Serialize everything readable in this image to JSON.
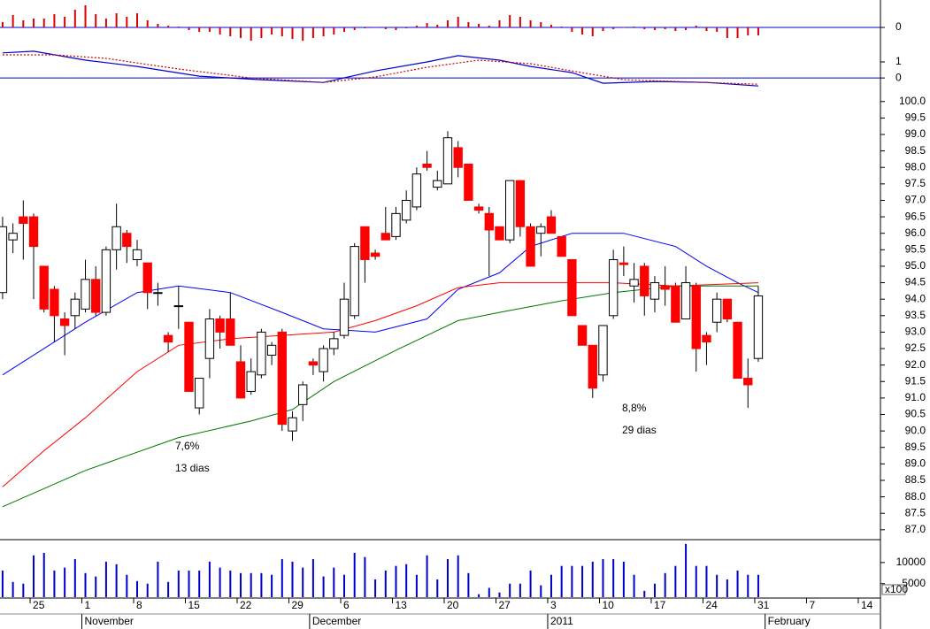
{
  "chart_data": [
    {
      "type": "bar",
      "color": "#dd0000",
      "xlim": [
        -3.25,
        81.8
      ],
      "ylim": [
        -18,
        29
      ],
      "yticks": [
        0
      ],
      "zero_line_color": "#0000cc",
      "x": [
        -3,
        -2,
        -1,
        0,
        1,
        2,
        3,
        4,
        5,
        6,
        7,
        8,
        9,
        10,
        11,
        12,
        13,
        14,
        15,
        16,
        17,
        18,
        19,
        20,
        21,
        22,
        23,
        24,
        25,
        26,
        27,
        28,
        29,
        30,
        31,
        32,
        33,
        34,
        35,
        36,
        37,
        38,
        39,
        40,
        41,
        42,
        43,
        44,
        45,
        46,
        47,
        48,
        49,
        50,
        51,
        52,
        53,
        54,
        55,
        56,
        57,
        58,
        59,
        60,
        61,
        62,
        63,
        64,
        65,
        66,
        67,
        68,
        69,
        70
      ],
      "values": [
        6,
        14,
        8,
        10,
        10,
        15,
        12,
        20,
        25,
        15,
        10,
        16,
        12,
        16,
        8,
        4,
        2,
        1,
        -3,
        -5,
        -5,
        -8,
        -10,
        -12,
        -15,
        -12,
        -8,
        -10,
        -13,
        -15,
        -12,
        -10,
        -8,
        -5,
        -3,
        -1,
        0,
        -2,
        -3,
        -1,
        2,
        5,
        3,
        8,
        12,
        6,
        4,
        2,
        8,
        14,
        12,
        8,
        6,
        3,
        1,
        -5,
        -8,
        -10,
        -4,
        -2,
        0,
        1,
        -2,
        -3,
        -2,
        -4,
        -3,
        2,
        -4,
        -5,
        -12,
        -12,
        -9,
        -9
      ]
    },
    {
      "type": "line",
      "xlim": [
        -3.25,
        81.8
      ],
      "ylim": [
        -0.6,
        2.6
      ],
      "yticks": [
        0,
        1
      ],
      "zero_line_color": "#0000cc",
      "series": [
        {
          "color": "#0000cc",
          "style": "solid",
          "x": [
            -3,
            0,
            5,
            10,
            16,
            22,
            28,
            33,
            38,
            41,
            45,
            48,
            52,
            55,
            60,
            65,
            70
          ],
          "values": [
            1.56,
            1.67,
            1.11,
            0.72,
            0.11,
            -0.11,
            -0.28,
            0.44,
            1.0,
            1.39,
            1.11,
            0.72,
            0.33,
            -0.33,
            -0.22,
            -0.28,
            -0.5
          ]
        },
        {
          "color": "#cc0000",
          "style": "dotted",
          "x": [
            -3,
            2,
            7,
            14,
            21,
            28,
            33,
            38,
            43,
            48,
            52,
            57,
            62,
            70
          ],
          "values": [
            1.44,
            1.44,
            1.22,
            0.56,
            0,
            -0.28,
            0.06,
            0.67,
            1.11,
            0.89,
            0.44,
            -0.11,
            -0.22,
            -0.39
          ]
        }
      ]
    },
    {
      "type": "candlestick",
      "xlim": [
        -3.25,
        81.8
      ],
      "ylim": [
        86.7,
        100.45
      ],
      "up_color": "#ffffff",
      "down_color": "#ff0000",
      "yticks": [
        {
          "value": 87,
          "label": "87.0"
        },
        {
          "value": 87.5,
          "label": "87.5"
        },
        {
          "value": 88,
          "label": "88.0"
        },
        {
          "value": 88.5,
          "label": "88.5"
        },
        {
          "value": 89,
          "label": "89.0"
        },
        {
          "value": 89.5,
          "label": "89.5"
        },
        {
          "value": 90,
          "label": "90.0"
        },
        {
          "value": 90.5,
          "label": "90.5"
        },
        {
          "value": 91,
          "label": "91.0"
        },
        {
          "value": 91.5,
          "label": "91.5"
        },
        {
          "value": 92,
          "label": "92.0"
        },
        {
          "value": 92.5,
          "label": "92.5"
        },
        {
          "value": 93,
          "label": "93.0"
        },
        {
          "value": 93.5,
          "label": "93.5"
        },
        {
          "value": 94,
          "label": "94.0"
        },
        {
          "value": 94.5,
          "label": "94.5"
        },
        {
          "value": 95,
          "label": "95.0"
        },
        {
          "value": 95.5,
          "label": "95.5"
        },
        {
          "value": 96,
          "label": "96.0"
        },
        {
          "value": 96.5,
          "label": "96.5"
        },
        {
          "value": 97,
          "label": "97.0"
        },
        {
          "value": 97.5,
          "label": "97.5"
        },
        {
          "value": 98,
          "label": "98.0"
        },
        {
          "value": 98.5,
          "label": "98.5"
        },
        {
          "value": 99,
          "label": "99.0"
        },
        {
          "value": 99.5,
          "label": "99.5"
        },
        {
          "value": 100,
          "label": "100.0"
        }
      ],
      "x": [
        -3,
        -2,
        -1,
        0,
        1,
        2,
        3,
        4,
        5,
        6,
        7,
        8,
        9,
        10,
        11,
        12,
        13,
        14,
        15,
        16,
        17,
        18,
        19,
        20,
        21,
        22,
        23,
        24,
        25,
        26,
        27,
        28,
        29,
        30,
        31,
        32,
        33,
        34,
        35,
        36,
        37,
        38,
        39,
        40,
        41,
        42,
        43,
        44,
        45,
        46,
        47,
        48,
        49,
        50,
        51,
        52,
        53,
        54,
        55,
        56,
        57,
        58,
        59,
        60,
        61,
        62,
        63,
        64,
        65,
        66,
        67,
        68,
        69,
        70
      ],
      "open": [
        94.2,
        95.8,
        96.5,
        96.5,
        95.0,
        94.3,
        93.4,
        93.5,
        93.7,
        94.6,
        93.6,
        95.5,
        96.0,
        95.2,
        95.1,
        94.2,
        92.9,
        93.8,
        93.3,
        90.7,
        92.2,
        93.4,
        93.4,
        92.1,
        91.2,
        91.7,
        92.3,
        93.0,
        90.0,
        90.8,
        92.1,
        91.8,
        92.5,
        92.9,
        93.5,
        96.2,
        95.4,
        96.0,
        95.9,
        96.4,
        96.8,
        98.1,
        97.4,
        97.5,
        98.6,
        98.1,
        96.8,
        96.6,
        96.2,
        95.8,
        97.6,
        96.2,
        96.0,
        96.5,
        95.9,
        95.2,
        93.2,
        92.6,
        91.7,
        93.5,
        95.1,
        94.4,
        95.0,
        94.0,
        94.4,
        94.4,
        93.4,
        94.4,
        92.9,
        93.3,
        94.0,
        93.3,
        91.6,
        92.2
      ],
      "high": [
        96.5,
        96.3,
        97.0,
        96.6,
        95.0,
        94.4,
        93.6,
        94.2,
        95.2,
        95.0,
        95.6,
        96.9,
        96.1,
        95.8,
        95.1,
        94.5,
        93.0,
        94.4,
        93.3,
        91.6,
        93.7,
        93.5,
        94.2,
        92.6,
        92.2,
        93.1,
        92.7,
        93.1,
        90.6,
        91.5,
        92.2,
        92.6,
        93.0,
        94.5,
        95.7,
        96.2,
        95.5,
        96.8,
        96.8,
        97.3,
        98.0,
        98.5,
        97.9,
        99.1,
        98.8,
        98.1,
        96.9,
        96.8,
        96.2,
        97.6,
        97.6,
        96.3,
        96.3,
        96.7,
        95.9,
        95.2,
        93.2,
        92.6,
        93.2,
        95.5,
        95.6,
        95.1,
        95.1,
        94.7,
        95.0,
        94.5,
        95.0,
        94.5,
        93.0,
        94.2,
        94.0,
        93.3,
        92.2,
        94.4
      ],
      "low": [
        94.0,
        95.4,
        95.2,
        94.0,
        93.6,
        92.7,
        92.3,
        93.1,
        93.6,
        93.5,
        93.5,
        94.9,
        95.1,
        95.0,
        93.7,
        93.8,
        92.4,
        93.1,
        91.2,
        90.5,
        91.6,
        92.5,
        92.6,
        91.0,
        91.1,
        91.6,
        92.0,
        90.0,
        89.7,
        90.3,
        91.7,
        91.5,
        92.3,
        92.8,
        93.4,
        94.5,
        95.2,
        95.8,
        95.8,
        96.3,
        96.7,
        97.9,
        97.3,
        97.5,
        97.7,
        97.0,
        96.6,
        94.7,
        95.8,
        95.7,
        95.9,
        95.0,
        95.3,
        96.0,
        95.3,
        93.5,
        92.6,
        91.0,
        91.5,
        93.4,
        94.7,
        93.9,
        93.5,
        93.6,
        93.8,
        93.3,
        93.4,
        91.8,
        92.0,
        93.0,
        93.3,
        91.6,
        90.7,
        92.1
      ],
      "close": [
        96.2,
        96.0,
        96.3,
        95.6,
        93.7,
        93.5,
        93.2,
        94.0,
        94.6,
        93.6,
        95.5,
        96.2,
        95.6,
        95.5,
        94.2,
        94.2,
        92.7,
        93.8,
        91.2,
        91.6,
        93.4,
        93.0,
        92.6,
        91.0,
        91.8,
        93.0,
        92.6,
        90.2,
        90.4,
        91.4,
        92.0,
        92.5,
        92.8,
        94.0,
        95.6,
        95.2,
        95.3,
        95.8,
        96.6,
        97.0,
        97.8,
        98.0,
        97.6,
        98.9,
        98.0,
        97.0,
        96.7,
        96.1,
        95.8,
        97.6,
        96.2,
        95.0,
        96.2,
        96.0,
        95.3,
        93.5,
        92.6,
        91.3,
        93.2,
        95.2,
        95.05,
        94.6,
        94.1,
        94.5,
        94.3,
        93.3,
        94.5,
        92.5,
        92.7,
        94.0,
        93.4,
        91.6,
        91.4,
        94.1
      ],
      "overlays": [
        {
          "color": "#0000ff",
          "x": [
            -3,
            5,
            10,
            14,
            19,
            24,
            28,
            33,
            38,
            41,
            45,
            48,
            52,
            57,
            62,
            65,
            68,
            70
          ],
          "values": [
            91.7,
            93.3,
            94.2,
            94.4,
            94.2,
            93.6,
            93.1,
            93.0,
            93.4,
            94.3,
            94.8,
            95.6,
            96.0,
            96.0,
            95.6,
            95.0,
            94.5,
            94.2
          ]
        },
        {
          "color": "#ff0000",
          "x": [
            -3,
            1,
            5,
            10,
            14,
            19,
            24,
            29,
            33,
            37,
            41,
            45,
            51,
            56,
            62,
            70
          ],
          "values": [
            88.3,
            89.4,
            90.4,
            91.8,
            92.6,
            92.8,
            92.9,
            93.0,
            93.35,
            93.8,
            94.35,
            94.5,
            94.5,
            94.5,
            94.4,
            94.5
          ]
        },
        {
          "color": "#007700",
          "x": [
            -3,
            5,
            14,
            21,
            25,
            29,
            35,
            41,
            45,
            51,
            56,
            62,
            70
          ],
          "values": [
            87.7,
            88.8,
            89.8,
            90.3,
            90.65,
            91.5,
            92.45,
            93.35,
            93.6,
            93.95,
            94.2,
            94.4,
            94.4
          ]
        }
      ],
      "annotations": [
        "7,6%",
        "13 dias",
        "8,8%",
        "29 dias"
      ],
      "annotation_color": "#1a1acc"
    },
    {
      "type": "bar",
      "color": "#0000cc",
      "xlim": [
        -3.25,
        81.8
      ],
      "ylim": [
        1800,
        15000
      ],
      "yticks": [
        5000,
        10000
      ],
      "unit_label": "x100",
      "x": [
        -3,
        -2,
        -1,
        0,
        1,
        2,
        3,
        4,
        5,
        6,
        7,
        8,
        9,
        10,
        11,
        12,
        13,
        14,
        15,
        16,
        17,
        18,
        19,
        20,
        21,
        22,
        23,
        24,
        25,
        26,
        27,
        28,
        29,
        30,
        31,
        32,
        33,
        34,
        35,
        36,
        37,
        38,
        39,
        40,
        41,
        42,
        43,
        44,
        45,
        46,
        47,
        48,
        49,
        50,
        51,
        52,
        53,
        54,
        55,
        56,
        57,
        58,
        59,
        60,
        61,
        62,
        63,
        64,
        65,
        66,
        67,
        68,
        69,
        70
      ],
      "values": [
        8100,
        5400,
        5000,
        11700,
        12300,
        8100,
        8800,
        10800,
        7500,
        6700,
        10200,
        9600,
        7100,
        5600,
        5000,
        10200,
        5400,
        8100,
        8100,
        8100,
        10200,
        8800,
        8100,
        7500,
        7500,
        7500,
        7100,
        10800,
        10200,
        8800,
        10800,
        6700,
        8800,
        7100,
        12300,
        11300,
        6000,
        8100,
        9200,
        9600,
        7100,
        11700,
        6000,
        10800,
        11700,
        7500,
        2500,
        4000,
        2900,
        5000,
        5000,
        8100,
        4600,
        7100,
        9200,
        9200,
        9200,
        10200,
        10800,
        10800,
        10200,
        7100,
        3300,
        5000,
        7500,
        9200,
        14400,
        9200,
        9200,
        7100,
        6000,
        8100,
        7100,
        7100
      ],
      "xticks": [
        {
          "value": 0,
          "label": "25"
        },
        {
          "value": 5,
          "label": "1"
        },
        {
          "value": 10,
          "label": "8"
        },
        {
          "value": 15,
          "label": "15"
        },
        {
          "value": 20,
          "label": "22"
        },
        {
          "value": 25,
          "label": "29"
        },
        {
          "value": 30,
          "label": "6"
        },
        {
          "value": 35,
          "label": "13"
        },
        {
          "value": 40,
          "label": "20"
        },
        {
          "value": 45,
          "label": "27"
        },
        {
          "value": 50,
          "label": "3"
        },
        {
          "value": 55,
          "label": "10"
        },
        {
          "value": 60,
          "label": "17"
        },
        {
          "value": 65,
          "label": "24"
        },
        {
          "value": 70,
          "label": "31"
        },
        {
          "value": 75,
          "label": "7"
        },
        {
          "value": 80,
          "label": "14"
        }
      ],
      "month_ticks": [
        {
          "value": 5,
          "label": "November"
        },
        {
          "value": 27,
          "label": "December"
        },
        {
          "value": 50,
          "label": "2011"
        },
        {
          "value": 71,
          "label": "February"
        }
      ]
    }
  ]
}
